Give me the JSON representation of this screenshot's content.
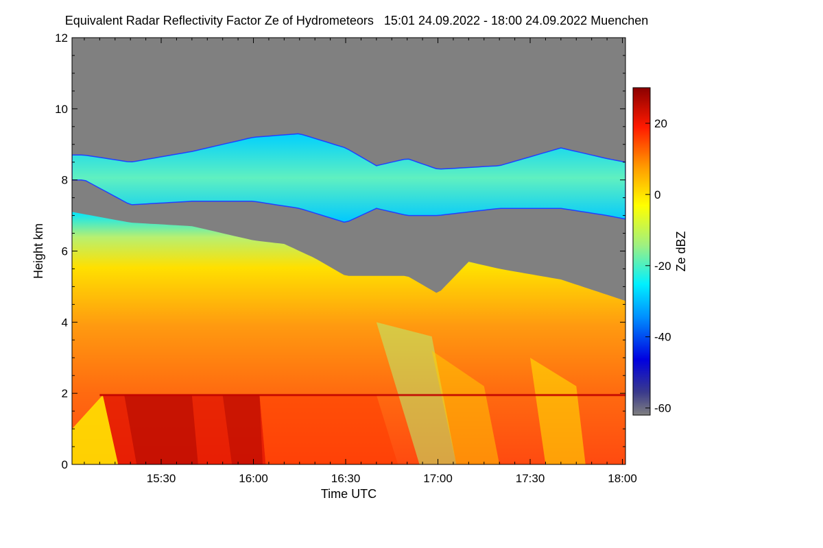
{
  "chart_data": {
    "type": "heatmap",
    "title": "Equivalent Radar Reflectivity Factor Ze of Hydrometeors",
    "period": "15:01 24.09.2022 - 18:00 24.09.2022",
    "location": "Muenchen",
    "xlabel": "Time UTC",
    "ylabel": "Height km",
    "colorbar_label": "Ze dBZ",
    "x_tick_labels": [
      "15:30",
      "16:00",
      "16:30",
      "17:00",
      "17:30",
      "18:00"
    ],
    "x_tick_minutes": [
      30,
      60,
      90,
      120,
      150,
      180
    ],
    "xlim_minutes": [
      1,
      181
    ],
    "y_ticks": [
      0,
      2,
      4,
      6,
      8,
      10,
      12
    ],
    "ylim": [
      0,
      12
    ],
    "colorbar_ticks": [
      20,
      0,
      -20,
      -40,
      -60
    ],
    "colorbar_range": [
      -62,
      30
    ],
    "background_color": "#808080",
    "melting_layer_height_km": 1.95,
    "layers": [
      {
        "name": "upper cloud",
        "time_min": [
          5,
          20,
          40,
          60,
          75,
          90,
          100,
          110,
          120,
          140,
          160,
          175,
          181
        ],
        "top_km": [
          8.7,
          8.5,
          8.8,
          9.2,
          9.3,
          8.9,
          8.4,
          8.6,
          8.3,
          8.4,
          8.9,
          8.6,
          8.5
        ],
        "base_km": [
          8.0,
          7.3,
          7.4,
          7.4,
          7.2,
          6.8,
          7.2,
          7.0,
          7.0,
          7.2,
          7.2,
          7.0,
          6.9
        ],
        "ze_range_dbz": [
          -30,
          -5
        ]
      },
      {
        "name": "lower precipitating cloud",
        "time_min": [
          1,
          20,
          40,
          60,
          70,
          80,
          90,
          100,
          110,
          120,
          130,
          140,
          160,
          181
        ],
        "top_km": [
          7.1,
          6.8,
          6.7,
          6.3,
          6.2,
          5.8,
          5.3,
          5.3,
          5.3,
          4.8,
          5.7,
          5.5,
          5.2,
          4.6
        ],
        "ze_range_dbz": [
          -30,
          28
        ]
      }
    ]
  }
}
